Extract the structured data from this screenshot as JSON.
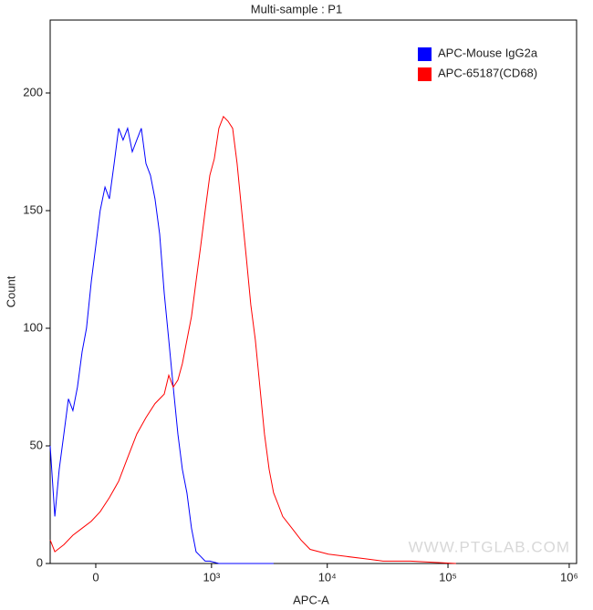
{
  "chart_data": {
    "type": "line",
    "title": "Multi-sample : P1",
    "x_label": "APC-A",
    "y_label": "Count",
    "xscale": "biexponential",
    "xlim": [
      -172,
      1150000
    ],
    "ylim": [
      0,
      231
    ],
    "xticks": [
      0,
      {
        "value": 1000,
        "label": "10³"
      },
      {
        "value": 10000,
        "label": "10⁴"
      },
      {
        "value": 100000,
        "label": "10⁵"
      },
      {
        "value": 1000000,
        "label": "10⁶"
      }
    ],
    "yticks": [
      0,
      50,
      100,
      150,
      200
    ],
    "legend": "top-right",
    "annotation": "WWW.PTGLAB.COM",
    "series": [
      {
        "name": "APC-Mouse IgG2a",
        "color": "#0000ff",
        "x": [
          -172,
          -147,
          -125,
          -104,
          -85,
          -68,
          -52,
          -37,
          -24,
          -11,
          0,
          11,
          24,
          37,
          52,
          68,
          85,
          104,
          125,
          147,
          172,
          199,
          228,
          260,
          295,
          333,
          375,
          419,
          469,
          522,
          581,
          644,
          714,
          791,
          873,
          964,
          1169,
          1703,
          3530
        ],
        "values": [
          50,
          20,
          40,
          55,
          70,
          65,
          75,
          90,
          100,
          120,
          135,
          150,
          160,
          155,
          170,
          185,
          180,
          185,
          175,
          180,
          185,
          170,
          165,
          155,
          140,
          115,
          95,
          75,
          55,
          40,
          30,
          15,
          5,
          3,
          1,
          1,
          0,
          0,
          0
        ]
      },
      {
        "name": "APC-65187(CD68)",
        "color": "#ff0000",
        "x": [
          -172,
          -147,
          -104,
          -68,
          -37,
          -11,
          11,
          37,
          68,
          104,
          147,
          199,
          260,
          333,
          375,
          419,
          469,
          522,
          581,
          644,
          714,
          791,
          873,
          964,
          1061,
          1169,
          1286,
          1413,
          1554,
          1703,
          1870,
          2053,
          2247,
          2462,
          2694,
          2950,
          3231,
          3530,
          3865,
          4219,
          5050,
          6025,
          7185,
          8563,
          10200,
          14490,
          20530,
          29060,
          48950,
          116500
        ],
        "values": [
          10,
          5,
          8,
          12,
          15,
          18,
          22,
          28,
          35,
          45,
          55,
          62,
          68,
          72,
          80,
          75,
          78,
          85,
          95,
          105,
          120,
          135,
          150,
          165,
          172,
          185,
          190,
          188,
          185,
          170,
          150,
          130,
          110,
          95,
          75,
          55,
          40,
          30,
          25,
          20,
          15,
          10,
          6,
          5,
          4,
          3,
          2,
          1,
          1,
          0
        ]
      }
    ]
  }
}
